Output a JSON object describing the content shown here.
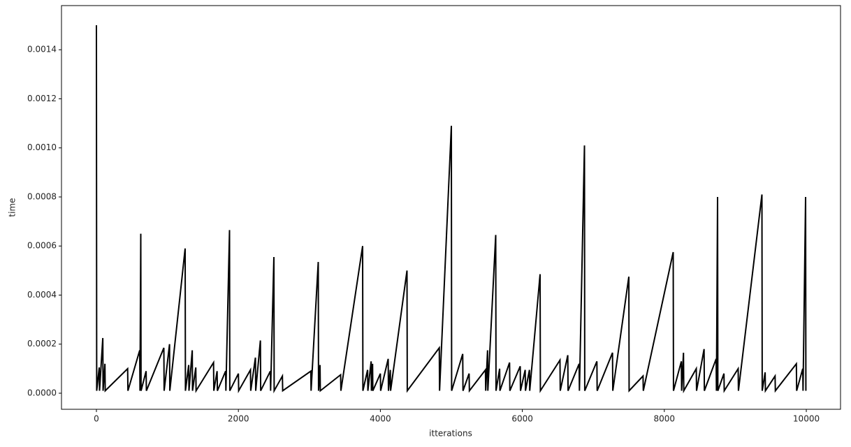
{
  "chart_data": {
    "type": "line",
    "xlabel": "itterations",
    "ylabel": "time",
    "x": [
      0,
      4,
      40,
      44,
      90,
      94,
      120,
      124,
      440,
      444,
      610,
      614,
      625,
      629,
      700,
      704,
      950,
      954,
      1030,
      1034,
      1250,
      1254,
      1300,
      1304,
      1350,
      1354,
      1400,
      1404,
      1650,
      1654,
      1700,
      1704,
      1820,
      1824,
      1875,
      1879,
      2000,
      2004,
      2170,
      2174,
      2240,
      2244,
      2310,
      2314,
      2450,
      2454,
      2500,
      2504,
      2620,
      2624,
      3020,
      3024,
      3125,
      3129,
      3150,
      3154,
      3440,
      3444,
      3750,
      3754,
      3820,
      3824,
      3870,
      3874,
      3890,
      3894,
      4000,
      4004,
      4110,
      4114,
      4140,
      4144,
      4375,
      4379,
      4830,
      4834,
      5000,
      5004,
      5160,
      5164,
      5250,
      5254,
      5480,
      5484,
      5510,
      5514,
      5625,
      5629,
      5680,
      5684,
      5820,
      5824,
      5970,
      5974,
      6040,
      6044,
      6100,
      6104,
      6250,
      6254,
      6530,
      6534,
      6640,
      6644,
      6800,
      6804,
      6875,
      6879,
      7050,
      7054,
      7270,
      7274,
      7500,
      7504,
      7700,
      7704,
      8125,
      8129,
      8240,
      8244,
      8270,
      8274,
      8450,
      8454,
      8560,
      8564,
      8730,
      8734,
      8750,
      8754,
      8840,
      8844,
      9040,
      9044,
      9375,
      9379,
      9420,
      9424,
      9560,
      9564,
      9860,
      9864,
      9950,
      9954,
      9990,
      9994
    ],
    "series": [
      {
        "color": "#000000",
        "values": [
          0.0015,
          1e-05,
          0.000105,
          1e-05,
          0.000225,
          1e-05,
          0.00012,
          1e-05,
          0.0001,
          1e-05,
          0.000175,
          1e-05,
          0.00065,
          1e-05,
          9e-05,
          1e-05,
          0.000185,
          1e-05,
          0.0002,
          1e-05,
          0.00059,
          1e-05,
          0.000115,
          1e-05,
          0.000175,
          1e-05,
          0.000105,
          1e-05,
          0.000125,
          1e-05,
          9e-05,
          1e-05,
          9e-05,
          1e-05,
          0.000665,
          1e-05,
          8e-05,
          1e-05,
          9.5e-05,
          1e-05,
          0.000145,
          1e-05,
          0.000215,
          1e-05,
          9e-05,
          1e-05,
          0.000555,
          1e-05,
          7e-05,
          1e-05,
          9e-05,
          1e-05,
          0.000535,
          1e-05,
          0.000115,
          1e-05,
          7.5e-05,
          1e-05,
          0.0006,
          1e-05,
          9.5e-05,
          1e-05,
          0.00013,
          1e-05,
          0.00012,
          1e-05,
          8e-05,
          1e-05,
          0.00014,
          1e-05,
          9.5e-05,
          1e-05,
          0.0005,
          1e-05,
          0.000185,
          1e-05,
          0.00109,
          1e-05,
          0.00016,
          1e-05,
          8e-05,
          1e-05,
          9.5e-05,
          1e-05,
          0.000175,
          1e-05,
          0.000645,
          1e-05,
          0.0001,
          1e-05,
          0.000125,
          1e-05,
          0.00011,
          1e-05,
          9.5e-05,
          1e-05,
          9.5e-05,
          1e-05,
          0.000485,
          1e-05,
          0.000135,
          1e-05,
          0.000155,
          1e-05,
          0.00012,
          1e-05,
          0.00101,
          1e-05,
          0.00013,
          1e-05,
          0.000165,
          1e-05,
          0.000475,
          1e-05,
          7e-05,
          1e-05,
          0.000575,
          1e-05,
          0.00013,
          1e-05,
          0.000165,
          1e-05,
          0.0001,
          1e-05,
          0.00018,
          1e-05,
          0.00014,
          1e-05,
          0.0008,
          1e-05,
          8e-05,
          1e-05,
          0.0001,
          1e-05,
          0.00081,
          1e-05,
          8.5e-05,
          1e-05,
          7e-05,
          1e-05,
          0.00012,
          1e-05,
          0.0001,
          1e-05,
          0.0008,
          1e-05
        ]
      }
    ],
    "xlim": [
      -492,
      10482
    ],
    "ylim": [
      -6.55e-05,
      0.00158
    ],
    "xticks": [
      0,
      2000,
      4000,
      6000,
      8000,
      10000
    ],
    "yticks": [
      {
        "value": 0,
        "label": "0.0000"
      },
      {
        "value": 0.0002,
        "label": "0.0002"
      },
      {
        "value": 0.0004,
        "label": "0.0004"
      },
      {
        "value": 0.0006,
        "label": "0.0006"
      },
      {
        "value": 0.0008,
        "label": "0.0008"
      },
      {
        "value": 0.001,
        "label": "0.0010"
      },
      {
        "value": 0.0012,
        "label": "0.0012"
      },
      {
        "value": 0.0014,
        "label": "0.0014"
      }
    ],
    "grid": false
  }
}
